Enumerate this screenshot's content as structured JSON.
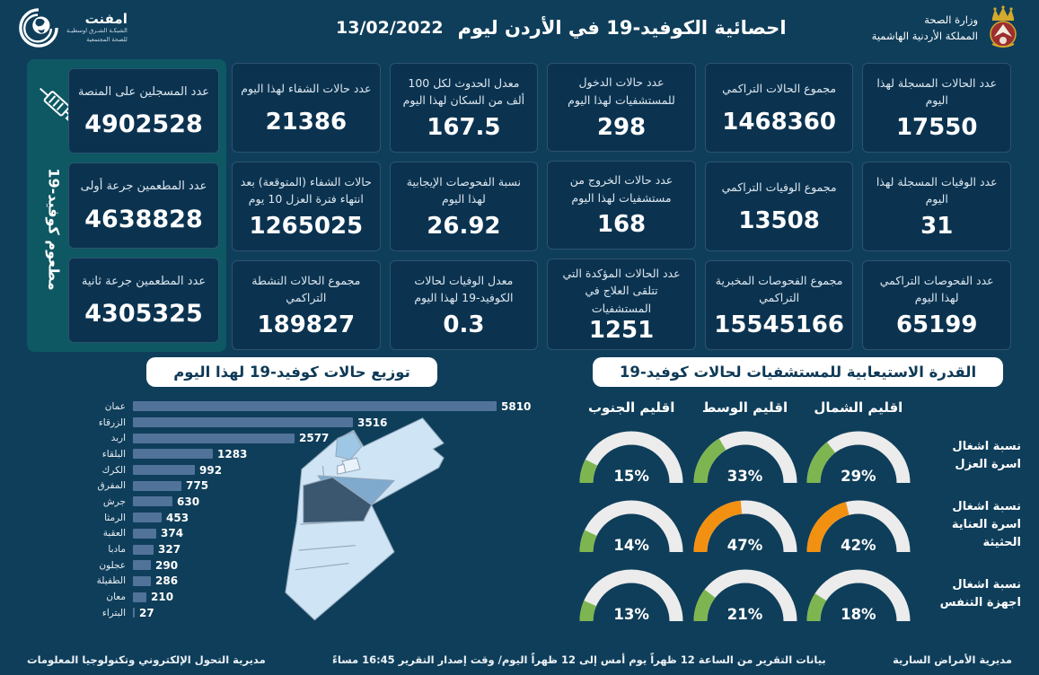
{
  "header": {
    "title": "احصائية الكوفيد-19 في الأردن ليوم",
    "date": "13/02/2022",
    "ministry_line1": "وزارة الصحة",
    "ministry_line2": "المملكة الأردنية الهاشمية",
    "logo_name": "امفنت",
    "logo_sub1": "الشبكـة الشـرق اوسطيـة",
    "logo_sub2": "للصحة المجتمعية"
  },
  "vaccine_panel": {
    "vertical_label": "مطعوم كوفيد-19",
    "cards": [
      {
        "label": "عدد المسجلين على المنصة",
        "value": "4902528"
      },
      {
        "label": "عدد المطعمين جرعة أولى",
        "value": "4638828"
      },
      {
        "label": "عدد المطعمين جرعة ثانية",
        "value": "4305325"
      }
    ]
  },
  "stats_grid": {
    "columns": [
      {
        "cards": [
          {
            "label": "عدد الحالات المسجلة لهذا اليوم",
            "value": "17550"
          },
          {
            "label": "عدد الوفيات المسجلة لهذا اليوم",
            "value": "31"
          },
          {
            "label": "عدد الفحوصات التراكمي لهذا اليوم",
            "value": "65199"
          }
        ]
      },
      {
        "cards": [
          {
            "label": "مجموع الحالات التراكمي",
            "value": "1468360"
          },
          {
            "label": "مجموع الوفيات التراكمي",
            "value": "13508"
          },
          {
            "label": "مجموع الفحوصات المخبرية التراكمي",
            "value": "15545166"
          }
        ]
      },
      {
        "cards": [
          {
            "label": "عدد حالات الدخول للمستشفيات لهذا اليوم",
            "value": "298"
          },
          {
            "label": "عدد حالات الخروج من مستشفيات لهذا اليوم",
            "value": "168"
          },
          {
            "label": "عدد الحالات المؤكدة التي تتلقى العلاج في المستشفيات",
            "value": "1251"
          }
        ]
      },
      {
        "cards": [
          {
            "label": "معدل الحدوث لكل 100 ألف من السكان لهذا اليوم",
            "value": "167.5"
          },
          {
            "label": "نسبة الفحوصات الإيجابية لهذا اليوم",
            "value": "26.92"
          },
          {
            "label": "معدل الوفيات لحالات الكوفيد-19 لهذا اليوم",
            "value": "0.3"
          }
        ]
      },
      {
        "cards": [
          {
            "label": "عدد حالات الشفاء لهذا اليوم",
            "value": "21386"
          },
          {
            "label": "حالات الشفاء (المتوقعة) بعد انتهاء فترة العزل 10 يوم",
            "value": "1265025"
          },
          {
            "label": "مجموع الحالات النشطة التراكمي",
            "value": "189827"
          }
        ]
      }
    ]
  },
  "chart_data": [
    {
      "type": "bar",
      "orientation": "horizontal",
      "title": "توزيع حالات كوفيد-19 لهذا اليوم",
      "categories": [
        "عمان",
        "الزرقاء",
        "اربد",
        "البلقاء",
        "الكرك",
        "المفرق",
        "جرش",
        "الرمثا",
        "العقبة",
        "مادبا",
        "عجلون",
        "الطفيلة",
        "معان",
        "البتراء"
      ],
      "values": [
        5810,
        3516,
        2577,
        1283,
        992,
        775,
        630,
        453,
        374,
        327,
        290,
        286,
        210,
        27
      ],
      "xlim": [
        0,
        5810
      ],
      "value_labels": true,
      "legend": "none",
      "grid": false
    },
    {
      "type": "gauge-grid",
      "title": "القدرة الاستيعابية للمستشفيات لحالات كوفيد-19",
      "region_headers": [
        "اقليم الشمال",
        "اقليم الوسط",
        "اقليم الجنوب"
      ],
      "rows": [
        {
          "label": "نسبة اشغال اسرة العزل",
          "values": [
            29,
            33,
            15
          ],
          "colors": [
            "green",
            "green",
            "green"
          ]
        },
        {
          "label": "نسبة اشغال اسرة العناية الحثيثة",
          "values": [
            42,
            47,
            14
          ],
          "colors": [
            "orange",
            "orange",
            "green"
          ]
        },
        {
          "label": "نسبة اشغال اجهزة التنفس",
          "values": [
            18,
            21,
            13
          ],
          "colors": [
            "green",
            "green",
            "green"
          ]
        }
      ],
      "unit": "%",
      "range": [
        0,
        100
      ]
    }
  ],
  "footer": {
    "right": "مديرية الأمراض السارية",
    "center": "بيانات التقرير من الساعة 12 ظهراً يوم أمس إلى 12 ظهراً اليوم/ وقت إصدار التقرير 16:45 مساءً",
    "left": "مديرية التحول الإلكتروني وتكنولوجيا المعلومات"
  },
  "colors": {
    "background": "#0f3e5a",
    "card": "#0b3350",
    "teal_panel": "#0d5863",
    "bar": "#517399",
    "gauge_green": "#7db650",
    "gauge_orange": "#f29111",
    "gauge_track": "#ececec",
    "pill_bg": "#ffffff",
    "pill_text": "#0d3956",
    "map_base": "#cfe4f5",
    "map_amman": "#3a576f",
    "map_zarqa": "#7fa9cd",
    "map_irbid": "#9ec7e6"
  }
}
